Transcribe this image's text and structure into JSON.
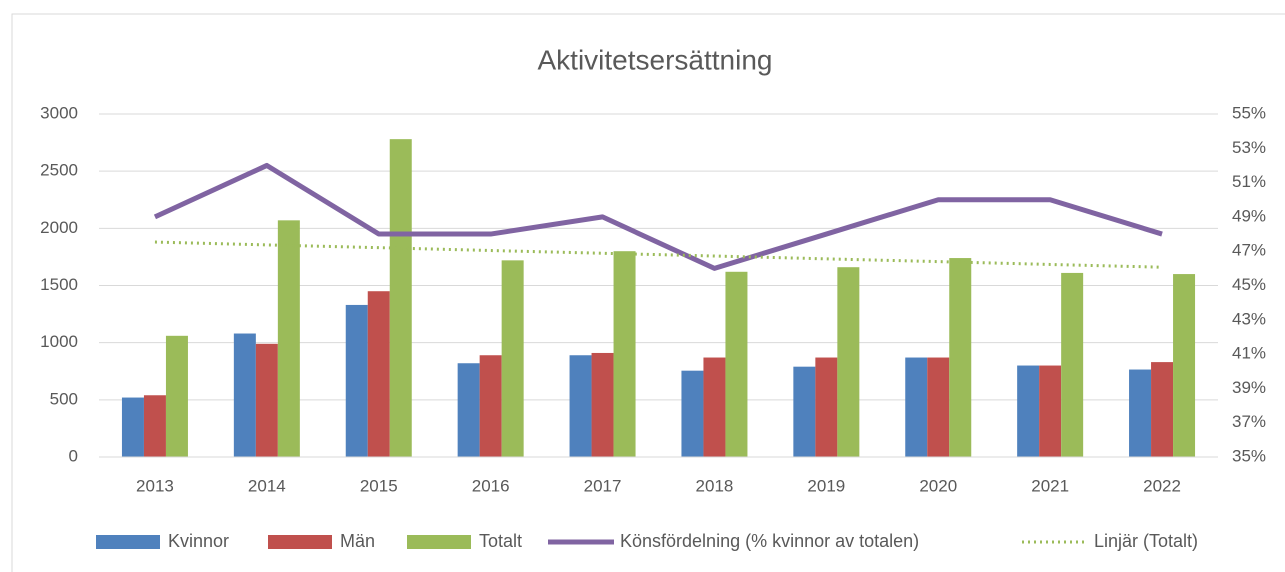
{
  "chart_data": {
    "type": "bar",
    "title": "Aktivitetsersättning",
    "categories": [
      "2013",
      "2014",
      "2015",
      "2016",
      "2017",
      "2018",
      "2019",
      "2020",
      "2021",
      "2022"
    ],
    "series": [
      {
        "name": "Kvinnor",
        "type": "bar",
        "color": "#4f81bd",
        "values": [
          520,
          1080,
          1330,
          820,
          890,
          755,
          790,
          870,
          800,
          765
        ]
      },
      {
        "name": "Män",
        "type": "bar",
        "color": "#c0504d",
        "values": [
          540,
          990,
          1450,
          890,
          910,
          870,
          870,
          870,
          800,
          830
        ]
      },
      {
        "name": "Totalt",
        "type": "bar",
        "color": "#9bbb59",
        "values": [
          1060,
          2070,
          2780,
          1720,
          1800,
          1620,
          1660,
          1740,
          1610,
          1600
        ]
      },
      {
        "name": "Könsfördelning (% kvinnor av totalen)",
        "type": "line",
        "axis": "y2",
        "color": "#8064a2",
        "values": [
          49,
          52,
          48,
          48,
          49,
          46,
          48,
          50,
          50,
          48
        ]
      },
      {
        "name": "Linjär (Totalt)",
        "type": "trend",
        "color": "#9bbb59",
        "values": [
          1880,
          1855,
          1831,
          1806,
          1782,
          1758,
          1733,
          1709,
          1684,
          1660
        ]
      }
    ],
    "ylim": [
      0,
      3000
    ],
    "yticks": [
      0,
      500,
      1000,
      1500,
      2000,
      2500,
      3000
    ],
    "y2lim": [
      35,
      55
    ],
    "y2ticks": [
      {
        "value": 35,
        "label": "35%"
      },
      {
        "value": 37,
        "label": "37%"
      },
      {
        "value": 39,
        "label": "39%"
      },
      {
        "value": 41,
        "label": "41%"
      },
      {
        "value": 43,
        "label": "43%"
      },
      {
        "value": 45,
        "label": "45%"
      },
      {
        "value": 47,
        "label": "47%"
      },
      {
        "value": 49,
        "label": "49%"
      },
      {
        "value": 51,
        "label": "51%"
      },
      {
        "value": 53,
        "label": "53%"
      },
      {
        "value": 55,
        "label": "55%"
      }
    ],
    "grid": true,
    "legend": "bottom"
  }
}
